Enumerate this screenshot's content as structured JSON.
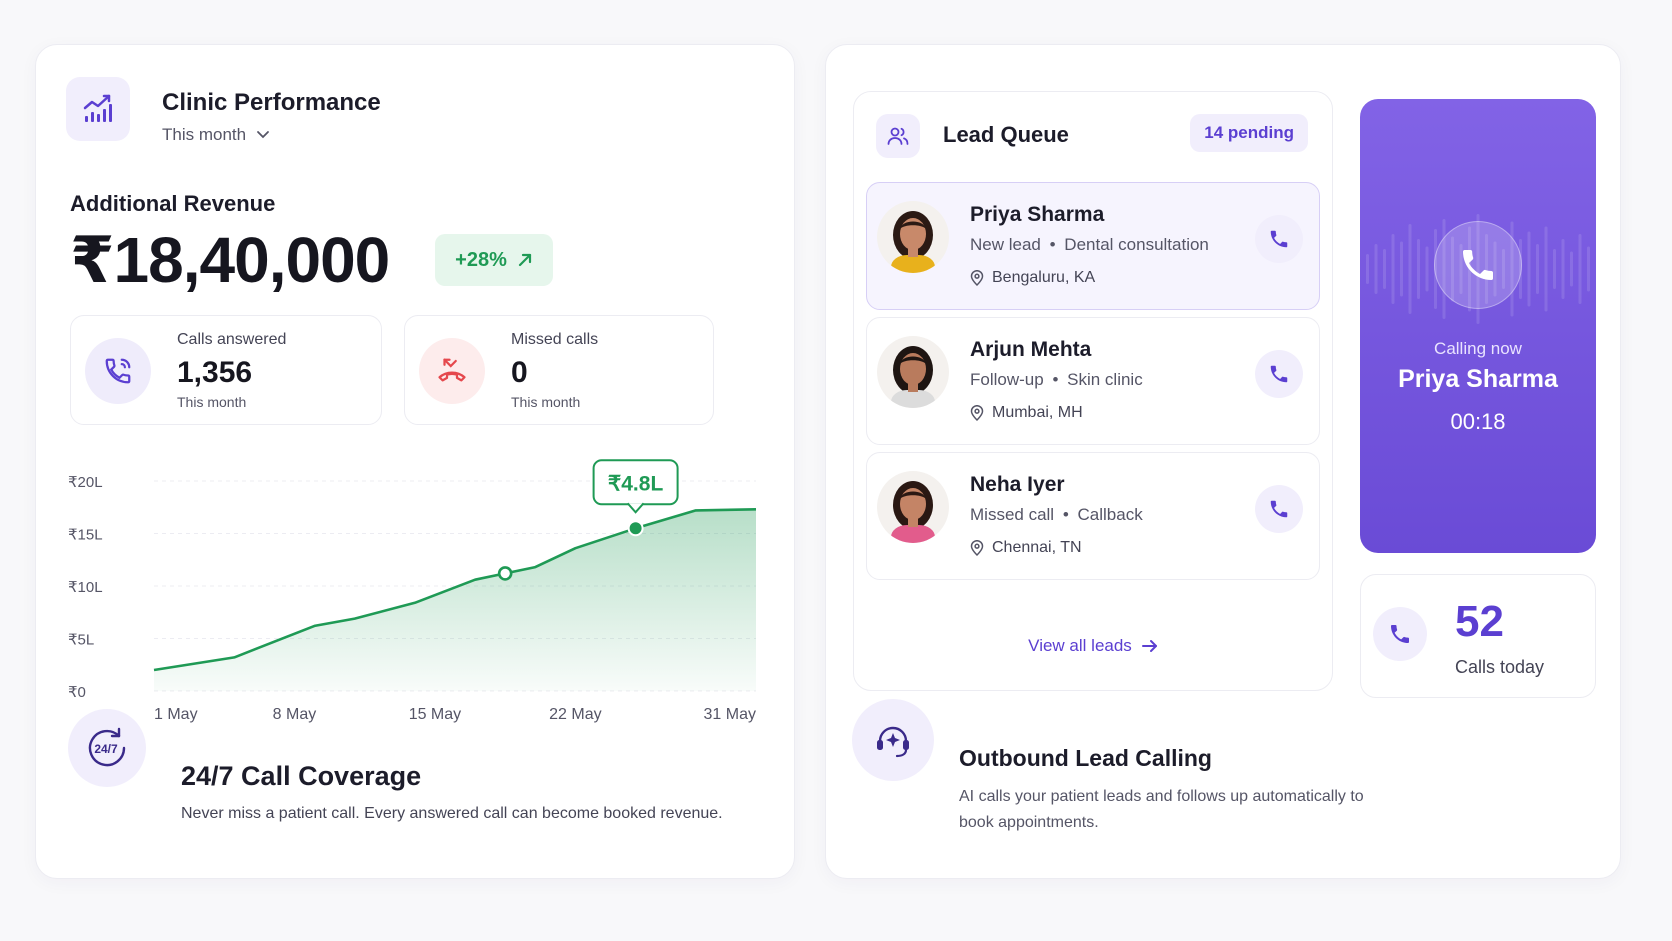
{
  "performance": {
    "title": "Clinic Performance",
    "period": "This month",
    "revenue_label": "Additional Revenue",
    "revenue_value": "₹18,40,000",
    "revenue_change": "+28%",
    "stats": [
      {
        "label": "Calls answered",
        "value": "1,356",
        "sub": "This month"
      },
      {
        "label": "Missed calls",
        "value": "0",
        "sub": "This month"
      }
    ]
  },
  "chart_data": {
    "type": "area",
    "title": "",
    "xlabel": "",
    "ylabel": "",
    "y_ticks": [
      "₹20L",
      "₹15L",
      "₹10L",
      "₹5L",
      "₹0"
    ],
    "x_ticks": [
      "1 May",
      "8 May",
      "15 May",
      "22 May",
      "31 May"
    ],
    "ylim": [
      0,
      20
    ],
    "x": [
      1,
      4,
      8,
      11,
      14,
      17,
      21,
      23,
      25,
      28,
      31
    ],
    "values": [
      2.0,
      3.2,
      6.2,
      7.1,
      10.5,
      11.3,
      13.5,
      15.5,
      15.5,
      17.3,
      17.3
    ],
    "points_x": [
      1,
      5,
      9,
      11,
      14,
      17,
      18.5,
      20,
      22,
      25,
      28,
      31
    ],
    "points_y": [
      2.0,
      3.2,
      6.2,
      6.9,
      8.4,
      10.6,
      11.2,
      11.8,
      13.6,
      15.5,
      17.2,
      17.3
    ],
    "highlight": {
      "x": 25,
      "y": 15.5,
      "label": "₹4.8L"
    },
    "marker": {
      "x": 18.5,
      "y": 11.2
    },
    "color": "#1f9a55"
  },
  "coverage": {
    "badge": "24/7",
    "title": "24/7 Call Coverage",
    "description": "Never miss a patient call. Every answered call can become booked revenue."
  },
  "queue": {
    "title": "Lead Queue",
    "badge": "14 pending",
    "leads": [
      {
        "name": "Priya Sharma",
        "type": "New lead",
        "detail": "Dental consultation",
        "location": "Bengaluru, KA"
      },
      {
        "name": "Arjun Mehta",
        "type": "Follow-up",
        "detail": "Skin clinic",
        "location": "Mumbai, MH"
      },
      {
        "name": "Neha Iyer",
        "type": "Missed call",
        "detail": "Callback",
        "location": "Chennai, TN"
      }
    ],
    "view_all": "View all leads",
    "separator": "•"
  },
  "calling": {
    "label": "Calling now",
    "name": "Priya Sharma",
    "time": "00:18"
  },
  "calls_today": {
    "value": "52",
    "label": "Calls today"
  },
  "outbound": {
    "title": "Outbound Lead Calling",
    "description": "AI calls your patient leads and follows up automatically to book appointments."
  },
  "colors": {
    "accent": "#5b3fd1",
    "success": "#1f9a55",
    "danger": "#e5484d"
  }
}
